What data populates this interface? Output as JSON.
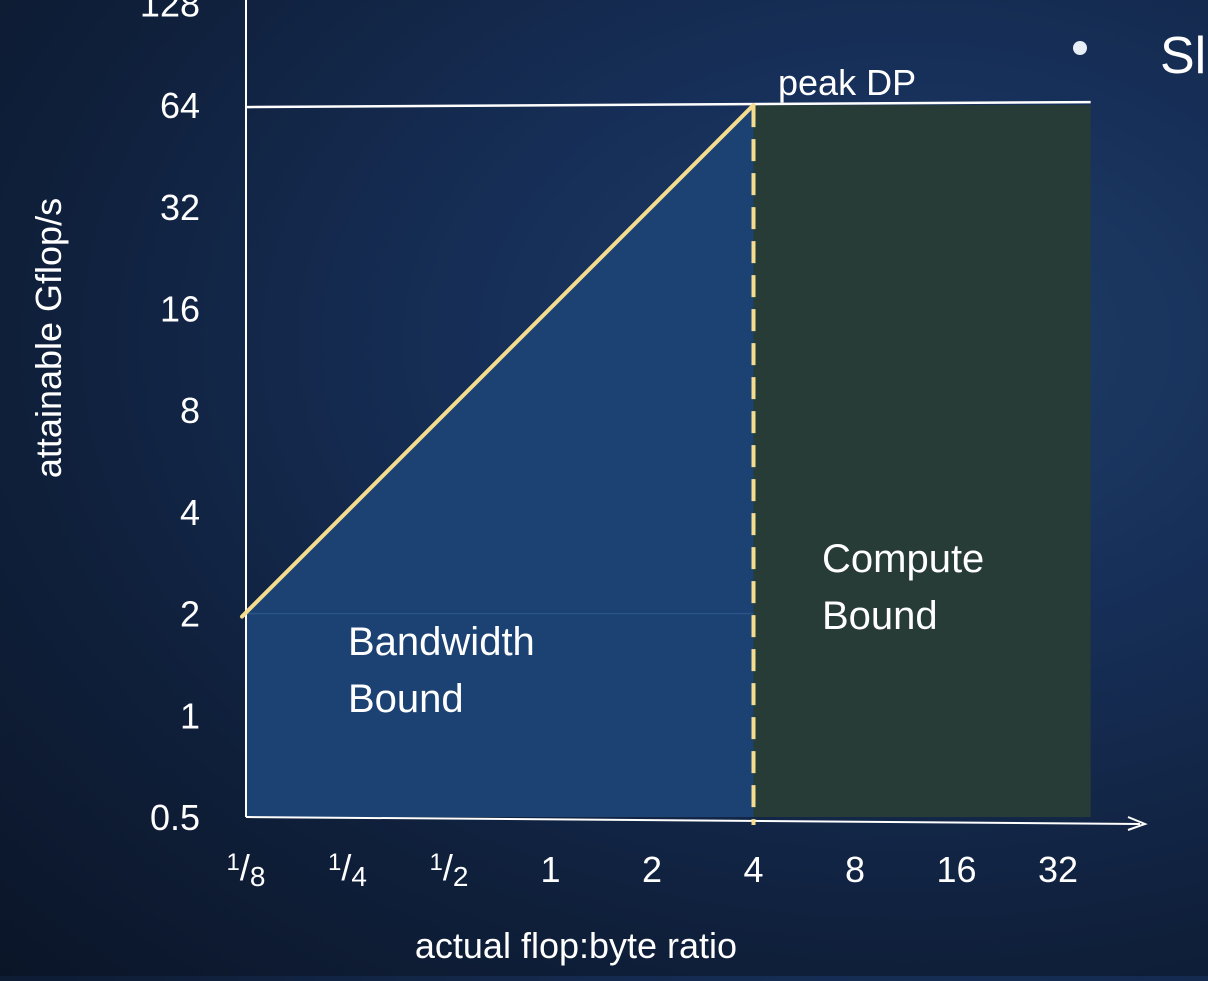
{
  "chart_data": {
    "type": "line",
    "xlabel": "actual flop:byte ratio",
    "ylabel": "attainable Gflop/s",
    "x_scale": "log2",
    "y_scale": "log2",
    "x_ticks": [
      {
        "value": 0.125,
        "label": "1/8",
        "num": "1",
        "den": "8"
      },
      {
        "value": 0.25,
        "label": "1/4",
        "num": "1",
        "den": "4"
      },
      {
        "value": 0.5,
        "label": "1/2",
        "num": "1",
        "den": "2"
      },
      {
        "value": 1,
        "label": "1"
      },
      {
        "value": 2,
        "label": "2"
      },
      {
        "value": 4,
        "label": "4"
      },
      {
        "value": 8,
        "label": "8"
      },
      {
        "value": 16,
        "label": "16"
      },
      {
        "value": 32,
        "label": "32"
      }
    ],
    "y_ticks": [
      {
        "value": 0.5,
        "label": "0.5"
      },
      {
        "value": 1,
        "label": "1"
      },
      {
        "value": 2,
        "label": "2"
      },
      {
        "value": 4,
        "label": "4"
      },
      {
        "value": 8,
        "label": "8"
      },
      {
        "value": 16,
        "label": "16"
      },
      {
        "value": 32,
        "label": "32"
      },
      {
        "value": 64,
        "label": "64"
      },
      {
        "value": 128,
        "label": "128"
      }
    ],
    "series": [
      {
        "x": [
          0.125,
          4
        ],
        "y": [
          2,
          64
        ],
        "color": "#f5dd8f"
      }
    ],
    "peak": {
      "value": 64,
      "label": "peak DP"
    },
    "ridge_x": 4,
    "regions": [
      {
        "label_lines": [
          "Bandwidth",
          "Bound"
        ],
        "x_from": 0.125,
        "x_to": 4,
        "color": "#1b4273"
      },
      {
        "label_lines": [
          "Compute",
          "Bound"
        ],
        "x_from": 4,
        "x_to": 40,
        "color": "#273c36"
      }
    ],
    "bullet_text": "Sl"
  }
}
